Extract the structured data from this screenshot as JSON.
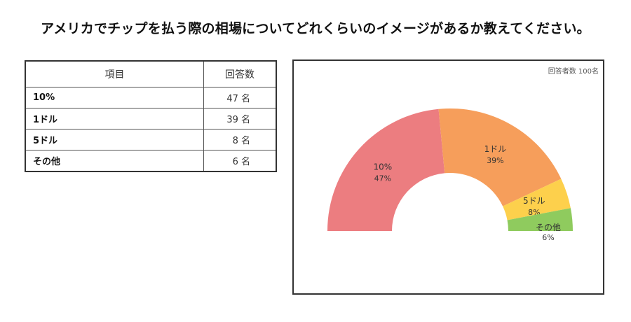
{
  "question": "アメリカでチップを払う際の相場についてどれくらいのイメージがあるか教えてください。",
  "table": {
    "headers": [
      "項目",
      "回答数"
    ],
    "rows": [
      {
        "item": "10%",
        "count": "47 名"
      },
      {
        "item": "1ドル",
        "count": "39 名"
      },
      {
        "item": "5ドル",
        "count": "8 名"
      },
      {
        "item": "その他",
        "count": "6 名"
      }
    ]
  },
  "chart_data": {
    "type": "pie",
    "variant": "half-donut",
    "note": "回答者数 100名",
    "slices": [
      {
        "label": "10%",
        "value": 47,
        "percent_label": "47%",
        "color": "#ec7d80"
      },
      {
        "label": "1ドル",
        "value": 39,
        "percent_label": "39%",
        "color": "#f69e5b"
      },
      {
        "label": "5ドル",
        "value": 8,
        "percent_label": "8%",
        "color": "#fdd04c"
      },
      {
        "label": "その他",
        "value": 6,
        "percent_label": "6%",
        "color": "#8fcb5e"
      }
    ]
  }
}
